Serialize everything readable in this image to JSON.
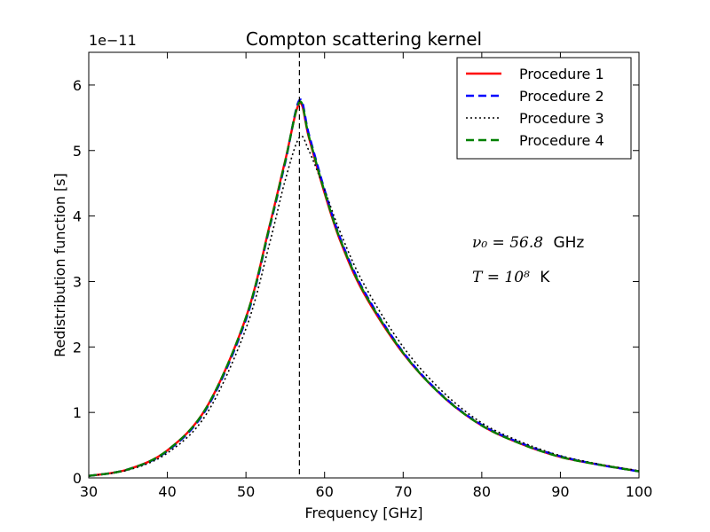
{
  "chart_data": {
    "type": "line",
    "title": "Compton scattering kernel",
    "xlabel": "Frequency [GHz]",
    "ylabel": "Redistribution function [s]",
    "y_offset_label": "1e−11",
    "xlim": [
      30,
      100
    ],
    "ylim": [
      0,
      6.5
    ],
    "xticks": [
      30,
      40,
      50,
      60,
      70,
      80,
      90,
      100
    ],
    "yticks": [
      0,
      1,
      2,
      3,
      4,
      5,
      6
    ],
    "grid": false,
    "legend_position": "top-right",
    "vline": {
      "x": 56.8,
      "style": "dashed",
      "color": "#000000"
    },
    "annotations": [
      {
        "text": "ν₀ = 56.8",
        "unit": "GHz"
      },
      {
        "text": "T = 10⁸",
        "unit": "K"
      }
    ],
    "x": [
      30,
      35,
      40,
      45,
      50,
      53,
      55,
      56.8,
      58,
      60,
      62,
      65,
      70,
      75,
      80,
      85,
      90,
      95,
      100
    ],
    "series": [
      {
        "name": "Procedure 1",
        "color": "#ff0000",
        "style": "solid",
        "values": [
          0.03,
          0.13,
          0.42,
          1.08,
          2.45,
          3.85,
          4.85,
          5.72,
          5.2,
          4.35,
          3.62,
          2.82,
          1.9,
          1.25,
          0.8,
          0.52,
          0.32,
          0.2,
          0.1
        ]
      },
      {
        "name": "Procedure 2",
        "color": "#0000ff",
        "style": "dashed",
        "values": [
          0.03,
          0.13,
          0.41,
          1.06,
          2.42,
          3.82,
          4.82,
          5.77,
          5.25,
          4.4,
          3.66,
          2.86,
          1.92,
          1.26,
          0.81,
          0.53,
          0.33,
          0.2,
          0.1
        ]
      },
      {
        "name": "Procedure 3",
        "color": "#000000",
        "style": "dotted",
        "values": [
          0.03,
          0.12,
          0.38,
          0.98,
          2.28,
          3.58,
          4.55,
          5.2,
          5.0,
          4.4,
          3.75,
          2.96,
          2.0,
          1.32,
          0.84,
          0.55,
          0.34,
          0.21,
          0.11
        ]
      },
      {
        "name": "Procedure 4",
        "color": "#008000",
        "style": "dashed",
        "values": [
          0.03,
          0.13,
          0.42,
          1.08,
          2.45,
          3.84,
          4.84,
          5.74,
          5.22,
          4.37,
          3.64,
          2.84,
          1.91,
          1.25,
          0.8,
          0.52,
          0.32,
          0.2,
          0.1
        ]
      }
    ]
  }
}
